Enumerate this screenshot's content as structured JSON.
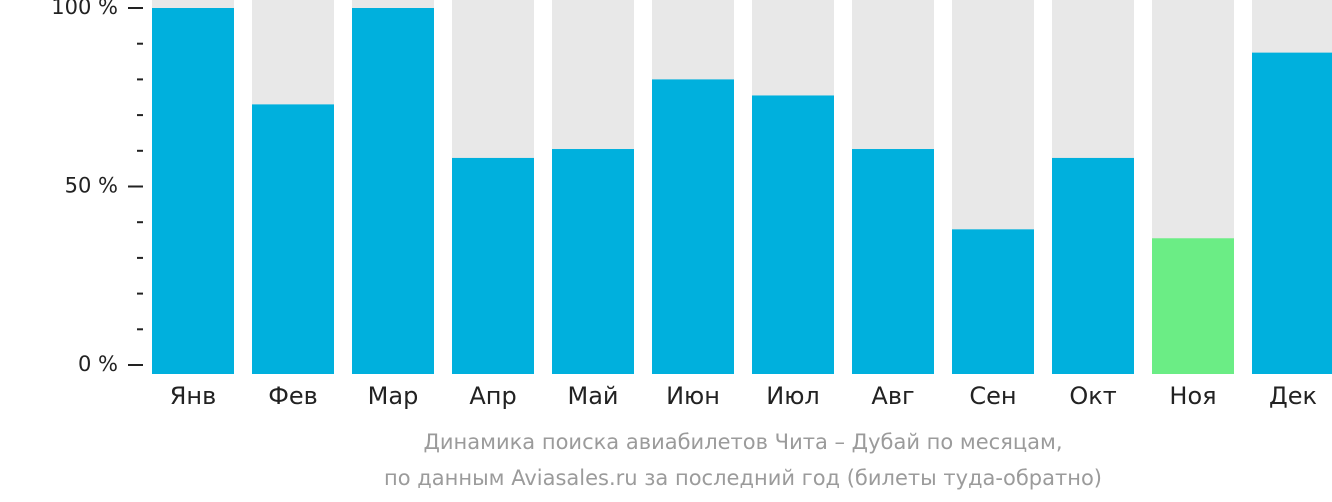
{
  "chart_data": {
    "type": "bar",
    "categories": [
      "Янв",
      "Фев",
      "Мар",
      "Апр",
      "Май",
      "Июн",
      "Июл",
      "Авг",
      "Сен",
      "Окт",
      "Ноя",
      "Дек"
    ],
    "values": [
      100,
      73,
      100,
      58,
      60.5,
      80,
      75.5,
      60.5,
      38,
      58,
      35.5,
      87.5
    ],
    "ylim": [
      0,
      100
    ],
    "yticks": [
      {
        "value": 100,
        "label": "100 %"
      },
      {
        "value": 50,
        "label": "50 %"
      },
      {
        "value": 0,
        "label": "0 %"
      }
    ],
    "highlight_index": 10,
    "colors": {
      "bar": "#00b0dd",
      "highlight": "#6bed85",
      "track": "#e8e8e8",
      "axis": "#222222"
    }
  },
  "caption": {
    "line1": "Динамика поиска авиабилетов Чита – Дубай по месяцам,",
    "line2": "по данным Aviasales.ru за последний год (билеты туда-обратно)"
  }
}
